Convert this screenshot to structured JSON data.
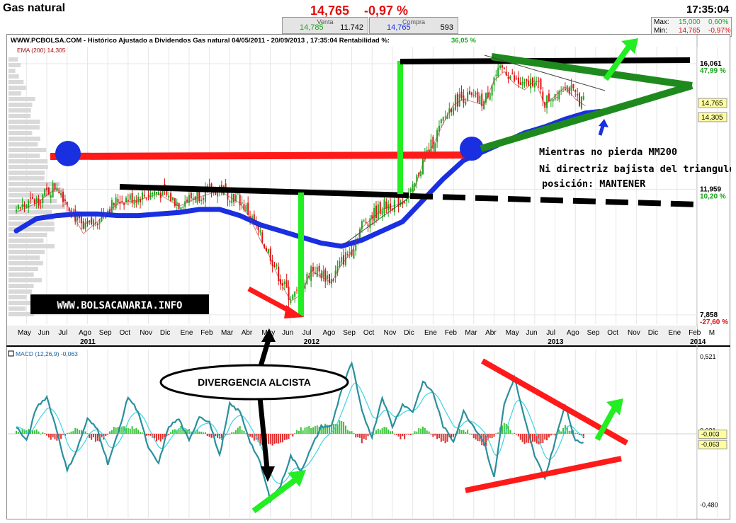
{
  "header": {
    "title": "Gas natural",
    "price": "14,765",
    "change": "-0,97 %",
    "time": "17:35:04"
  },
  "sell": {
    "caption": "Venta",
    "price": "14,785",
    "volume": "11.742"
  },
  "buy": {
    "caption": "Compra",
    "price": "14,765",
    "volume": "593"
  },
  "maxmin": {
    "max_label": "Max:",
    "max_value": "15,000",
    "max_pct": "0,60%",
    "min_label": "Min:",
    "min_value": "14,765",
    "min_pct": "-0,97%"
  },
  "colors": {
    "up": "#1aa61a",
    "down": "#e01010",
    "blue": "#1a2fe0",
    "teal": "#2a8f9c"
  },
  "chart_data": [
    {
      "type": "candlestick",
      "title": "WWW.PCBOLSA.COM - Histórico  Ajustado a Dividendos Gas natural 04/05/2011 - 20/09/2013 , 17:35:04 Rentabilidad %:",
      "return_pct": "36,05 %",
      "ema_label": "EMA (200)  14,305",
      "price_labels": [
        {
          "v": 16.061,
          "text": "16,061",
          "pct": "47,99 %"
        },
        {
          "v": 11.959,
          "text": "11,959",
          "pct": "10,20 %"
        },
        {
          "v": 7.858,
          "text": "7,858",
          "pct": "-27,60 %"
        }
      ],
      "tag_labels": [
        {
          "v": 14.765,
          "text": "14,765"
        },
        {
          "v": 14.305,
          "text": "14,305"
        }
      ],
      "ylim": [
        7.6,
        16.5
      ],
      "x_months": [
        "May",
        "Jun",
        "Jul",
        "Ago",
        "Sep",
        "Oct",
        "Nov",
        "Dic",
        "Ene",
        "Feb",
        "Mar",
        "Abr",
        "May",
        "Jun",
        "Jul",
        "Ago",
        "Sep",
        "Oct",
        "Nov",
        "Dic",
        "Ene",
        "Feb",
        "Mar",
        "Abr",
        "May",
        "Jun",
        "Jul",
        "Ago",
        "Sep",
        "Oct",
        "Nov",
        "Dic",
        "Ene",
        "Feb",
        "M"
      ],
      "x_years": [
        {
          "i": 3,
          "text": "2011"
        },
        {
          "i": 14,
          "text": "2012"
        },
        {
          "i": 26,
          "text": "2013"
        },
        {
          "i": 33,
          "text": "2014"
        }
      ],
      "close_path": [
        [
          0,
          11.3
        ],
        [
          1,
          11.6
        ],
        [
          2,
          12.1
        ],
        [
          2.8,
          11.2
        ],
        [
          3.3,
          10.6
        ],
        [
          4,
          11.0
        ],
        [
          5,
          11.6
        ],
        [
          6,
          11.7
        ],
        [
          7,
          11.9
        ],
        [
          8,
          11.5
        ],
        [
          9,
          11.8
        ],
        [
          10,
          12.0
        ],
        [
          11,
          11.6
        ],
        [
          11.5,
          11.1
        ],
        [
          12,
          10.4
        ],
        [
          12.5,
          9.8
        ],
        [
          13,
          9.0
        ],
        [
          13.5,
          8.4
        ],
        [
          14,
          8.6
        ],
        [
          14.5,
          9.4
        ],
        [
          15,
          9.2
        ],
        [
          15.5,
          9.0
        ],
        [
          16,
          9.6
        ],
        [
          16.5,
          10.0
        ],
        [
          17,
          10.8
        ],
        [
          18,
          11.4
        ],
        [
          19,
          11.6
        ],
        [
          19.5,
          11.9
        ],
        [
          20,
          12.9
        ],
        [
          20.5,
          13.5
        ],
        [
          21,
          14.2
        ],
        [
          21.5,
          14.8
        ],
        [
          22,
          15.0
        ],
        [
          22.5,
          14.9
        ],
        [
          23,
          14.8
        ],
        [
          23.5,
          15.6
        ],
        [
          24,
          15.9
        ],
        [
          24.5,
          15.5
        ],
        [
          25,
          15.3
        ],
        [
          25.5,
          15.6
        ],
        [
          26,
          14.8
        ],
        [
          26.5,
          15.1
        ],
        [
          27,
          15.4
        ],
        [
          27.5,
          15.0
        ],
        [
          28,
          14.77
        ]
      ],
      "ema200_path": [
        [
          0,
          10.6
        ],
        [
          1,
          11.0
        ],
        [
          2,
          11.1
        ],
        [
          3,
          11.15
        ],
        [
          4,
          11.15
        ],
        [
          5,
          11.1
        ],
        [
          6,
          11.1
        ],
        [
          7,
          11.15
        ],
        [
          8,
          11.2
        ],
        [
          9,
          11.3
        ],
        [
          10,
          11.3
        ],
        [
          11,
          11.1
        ],
        [
          12,
          10.8
        ],
        [
          13,
          10.6
        ],
        [
          14,
          10.4
        ],
        [
          15,
          10.2
        ],
        [
          16,
          10.1
        ],
        [
          17,
          10.3
        ],
        [
          18,
          10.6
        ],
        [
          19,
          10.9
        ],
        [
          20,
          11.6
        ],
        [
          21,
          12.3
        ],
        [
          22,
          12.9
        ],
        [
          23,
          13.2
        ],
        [
          24,
          13.5
        ],
        [
          25,
          13.8
        ],
        [
          26,
          14.0
        ],
        [
          27,
          14.25
        ],
        [
          28,
          14.45
        ],
        [
          28.7,
          14.5
        ]
      ],
      "annotations": [
        {
          "text": "WWW.BOLSACANARIA.INFO",
          "boxed": true
        },
        {
          "text": "Mientras no pierda MM200"
        },
        {
          "text": "Ni directriz bajista del triangulo"
        },
        {
          "text": "posición: MANTENER"
        },
        {
          "text": "DIVERGENCIA ALCISTA",
          "boxed": true
        }
      ]
    },
    {
      "type": "line",
      "title": "MACD (12,26,9)  -0,063",
      "ylim": [
        -0.55,
        0.55
      ],
      "y_labels": [
        {
          "v": 0.521,
          "text": "0,521"
        },
        {
          "v": 0.021,
          "text": "0,021"
        },
        {
          "v": -0.48,
          "text": "-0,480"
        }
      ],
      "tag_labels": [
        {
          "v": -0.003,
          "text": "-0,003"
        },
        {
          "v": -0.063,
          "text": "-0,063"
        }
      ],
      "macd_path": [
        [
          0,
          0.05
        ],
        [
          0.5,
          -0.05
        ],
        [
          1,
          0.18
        ],
        [
          1.5,
          0.25
        ],
        [
          2,
          0.02
        ],
        [
          2.5,
          -0.25
        ],
        [
          3,
          -0.1
        ],
        [
          3.5,
          0.1
        ],
        [
          4,
          0.03
        ],
        [
          4.5,
          -0.2
        ],
        [
          5,
          0.0
        ],
        [
          5.5,
          0.25
        ],
        [
          6,
          0.15
        ],
        [
          6.5,
          -0.1
        ],
        [
          7,
          -0.2
        ],
        [
          7.5,
          0.05
        ],
        [
          8,
          0.1
        ],
        [
          8.5,
          -0.05
        ],
        [
          9,
          0.12
        ],
        [
          9.5,
          0.08
        ],
        [
          10,
          -0.15
        ],
        [
          10.5,
          0.2
        ],
        [
          11,
          0.15
        ],
        [
          11.5,
          -0.05
        ],
        [
          12,
          -0.2
        ],
        [
          12.5,
          -0.45
        ],
        [
          13,
          -0.35
        ],
        [
          13.5,
          -0.15
        ],
        [
          14,
          -0.25
        ],
        [
          14.5,
          -0.1
        ],
        [
          15,
          0.05
        ],
        [
          15.5,
          0.05
        ],
        [
          16,
          0.3
        ],
        [
          16.5,
          0.48
        ],
        [
          17,
          0.15
        ],
        [
          17.5,
          -0.02
        ],
        [
          18,
          0.25
        ],
        [
          18.5,
          0.05
        ],
        [
          19,
          0.2
        ],
        [
          19.5,
          0.15
        ],
        [
          20,
          0.35
        ],
        [
          20.5,
          0.28
        ],
        [
          21,
          0.05
        ],
        [
          21.5,
          -0.05
        ],
        [
          22,
          0.15
        ],
        [
          22.5,
          0.05
        ],
        [
          23,
          -0.05
        ],
        [
          23.5,
          -0.3
        ],
        [
          24,
          0.2
        ],
        [
          24.5,
          0.38
        ],
        [
          25,
          0.1
        ],
        [
          25.5,
          -0.15
        ],
        [
          26,
          -0.3
        ],
        [
          26.5,
          -0.05
        ],
        [
          27,
          0.2
        ],
        [
          27.5,
          -0.05
        ],
        [
          28,
          -0.06
        ]
      ],
      "hist_path": [
        [
          0,
          0.02
        ],
        [
          1,
          0.03
        ],
        [
          2,
          -0.05
        ],
        [
          3,
          0.05
        ],
        [
          4,
          -0.06
        ],
        [
          5,
          0.06
        ],
        [
          6,
          0.03
        ],
        [
          7,
          -0.05
        ],
        [
          8,
          0.04
        ],
        [
          9,
          0.02
        ],
        [
          10,
          -0.04
        ],
        [
          11,
          0.05
        ],
        [
          12,
          -0.08
        ],
        [
          13,
          -0.06
        ],
        [
          14,
          0.03
        ],
        [
          15,
          0.06
        ],
        [
          16,
          0.08
        ],
        [
          17,
          -0.05
        ],
        [
          18,
          0.05
        ],
        [
          19,
          -0.03
        ],
        [
          20,
          0.05
        ],
        [
          21,
          -0.06
        ],
        [
          22,
          0.04
        ],
        [
          23,
          -0.09
        ],
        [
          24,
          0.07
        ],
        [
          25,
          -0.07
        ],
        [
          26,
          -0.05
        ],
        [
          27,
          0.05
        ],
        [
          28,
          -0.03
        ]
      ]
    }
  ]
}
